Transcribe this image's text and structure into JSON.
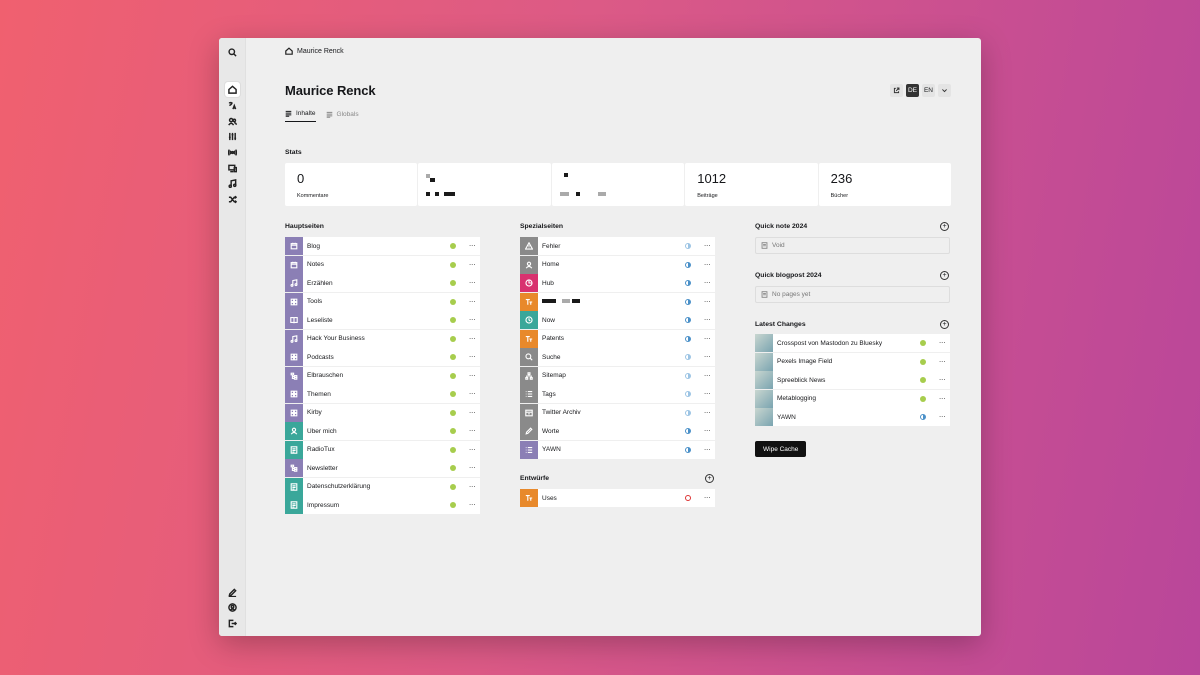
{
  "breadcrumb": {
    "label": "Maurice Renck"
  },
  "title": "Maurice Renck",
  "language": {
    "active": "DE",
    "other": "EN"
  },
  "tabs": [
    {
      "label": "Inhalte",
      "active": true
    },
    {
      "label": "Globals",
      "active": false
    }
  ],
  "stats": {
    "heading": "Stats",
    "items": [
      {
        "value": "0",
        "label": "Kommentare"
      },
      {
        "value": "",
        "label": ""
      },
      {
        "value": "",
        "label": ""
      },
      {
        "value": "1012",
        "label": "Beiträge"
      },
      {
        "value": "236",
        "label": "Bücher"
      }
    ]
  },
  "hauptseiten": {
    "heading": "Hauptseiten",
    "items": [
      {
        "label": "Blog",
        "color": "#8b7fb5",
        "icon": "calendar-icon",
        "status": "green"
      },
      {
        "label": "Notes",
        "color": "#8b7fb5",
        "icon": "calendar-icon",
        "status": "green"
      },
      {
        "label": "Erzählen",
        "color": "#8b7fb5",
        "icon": "music-icon",
        "status": "green"
      },
      {
        "label": "Tools",
        "color": "#8b7fb5",
        "icon": "grid-icon",
        "status": "green"
      },
      {
        "label": "Leseliste",
        "color": "#8b7fb5",
        "icon": "book-icon",
        "status": "green"
      },
      {
        "label": "Hack Your Business",
        "color": "#8b7fb5",
        "icon": "music-icon",
        "status": "green"
      },
      {
        "label": "Podcasts",
        "color": "#8b7fb5",
        "icon": "grid-icon",
        "status": "green"
      },
      {
        "label": "Elbrauschen",
        "color": "#8b7fb5",
        "icon": "tree-icon",
        "status": "green"
      },
      {
        "label": "Themen",
        "color": "#8b7fb5",
        "icon": "grid-icon",
        "status": "green"
      },
      {
        "label": "Kirby",
        "color": "#8b7fb5",
        "icon": "grid-icon",
        "status": "green"
      },
      {
        "label": "Über mich",
        "color": "#3aa79a",
        "icon": "user-icon",
        "status": "green"
      },
      {
        "label": "RadioTux",
        "color": "#3aa79a",
        "icon": "doc-icon",
        "status": "green"
      },
      {
        "label": "Newsletter",
        "color": "#8b7fb5",
        "icon": "tree-icon",
        "status": "green"
      },
      {
        "label": "Datenschutzerklärung",
        "color": "#3aa79a",
        "icon": "doc-icon",
        "status": "green"
      },
      {
        "label": "Impressum",
        "color": "#3aa79a",
        "icon": "doc-icon",
        "status": "green"
      }
    ]
  },
  "spezialseiten": {
    "heading": "Spezialseiten",
    "items": [
      {
        "label": "Fehler",
        "color": "#8a8a8a",
        "icon": "warning-icon",
        "status": "halflt"
      },
      {
        "label": "Home",
        "color": "#8a8a8a",
        "icon": "user-icon",
        "status": "half"
      },
      {
        "label": "Hub",
        "color": "#d8326f",
        "icon": "pie-icon",
        "status": "half"
      },
      {
        "label": "",
        "color": "#e8892b",
        "icon": "text-icon",
        "status": "half"
      },
      {
        "label": "Now",
        "color": "#3aa79a",
        "icon": "clock-icon",
        "status": "half"
      },
      {
        "label": "Patents",
        "color": "#e8892b",
        "icon": "text-icon",
        "status": "half"
      },
      {
        "label": "Suche",
        "color": "#8a8a8a",
        "icon": "search-icon",
        "status": "halflt"
      },
      {
        "label": "Sitemap",
        "color": "#8a8a8a",
        "icon": "sitemap-icon",
        "status": "halflt"
      },
      {
        "label": "Tags",
        "color": "#8a8a8a",
        "icon": "list-icon",
        "status": "halflt"
      },
      {
        "label": "Twitter Archiv",
        "color": "#8a8a8a",
        "icon": "archive-icon",
        "status": "halflt"
      },
      {
        "label": "Worte",
        "color": "#8a8a8a",
        "icon": "pen-icon",
        "status": "half"
      },
      {
        "label": "YAWN",
        "color": "#8b7fb5",
        "icon": "list-icon",
        "status": "half"
      }
    ]
  },
  "entwuerfe": {
    "heading": "Entwürfe",
    "items": [
      {
        "label": "Uses",
        "color": "#e8892b",
        "icon": "text-icon",
        "status": "empty"
      }
    ]
  },
  "quick_note": {
    "heading": "Quick note 2024",
    "empty": "Void"
  },
  "quick_blogpost": {
    "heading": "Quick blogpost 2024",
    "empty": "No pages yet"
  },
  "latest_changes": {
    "heading": "Latest Changes",
    "items": [
      {
        "label": "Crosspost von Mastodon zu Bluesky",
        "status": "green"
      },
      {
        "label": "Pexels Image Field",
        "status": "green"
      },
      {
        "label": "Spreeblick News",
        "status": "green"
      },
      {
        "label": "Metablogging",
        "status": "green"
      },
      {
        "label": "YAWN",
        "status": "half"
      }
    ]
  },
  "wipe_cache": "Wipe Cache",
  "options_glyph": "···"
}
